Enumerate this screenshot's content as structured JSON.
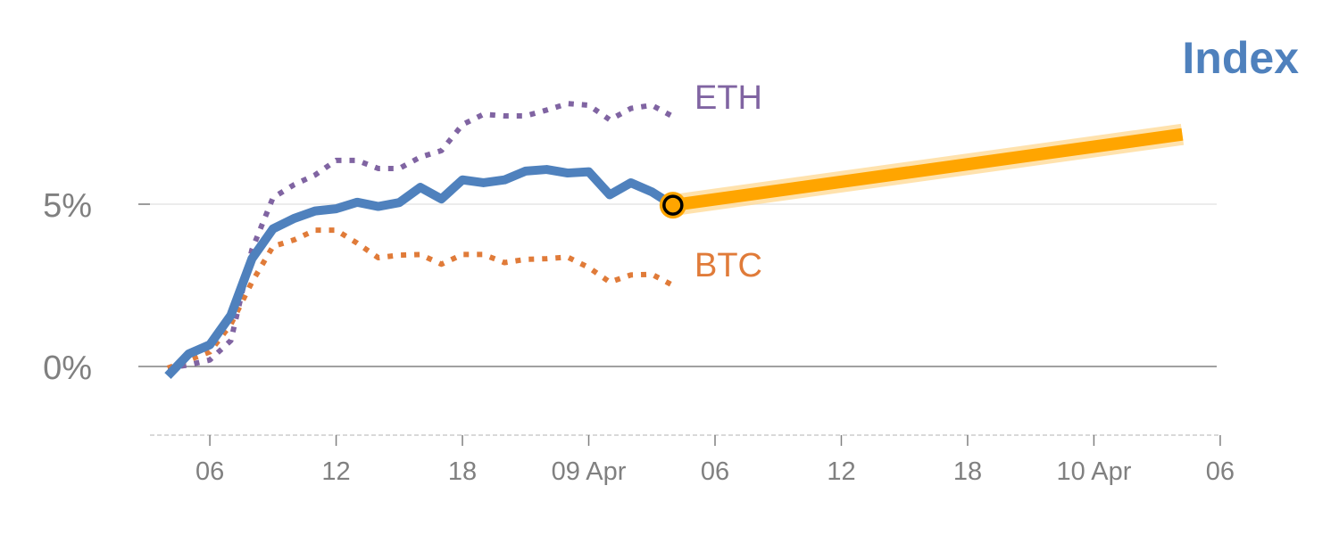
{
  "chart_data": {
    "type": "line",
    "title": "Index",
    "xlabel": "",
    "ylabel": "",
    "x_unit": "hours since 08 Apr 00:00",
    "xlim": [
      3.15,
      54
    ],
    "ylim": [
      -2.1,
      11.3
    ],
    "x_ticks": [
      {
        "hour": 6,
        "label": "06"
      },
      {
        "hour": 12,
        "label": "12"
      },
      {
        "hour": 18,
        "label": "18"
      },
      {
        "hour": 24,
        "label": "09 Apr"
      },
      {
        "hour": 30,
        "label": "06"
      },
      {
        "hour": 36,
        "label": "12"
      },
      {
        "hour": 42,
        "label": "18"
      },
      {
        "hour": 48,
        "label": "10 Apr"
      },
      {
        "hour": 54,
        "label": "06"
      }
    ],
    "y_ticks": [
      {
        "value": 0,
        "label": "0%"
      },
      {
        "value": 5,
        "label": "5%"
      }
    ],
    "x": [
      4,
      5,
      6,
      7,
      8,
      9,
      10,
      11,
      12,
      13,
      14,
      15,
      16,
      17,
      18,
      19,
      20,
      21,
      22,
      23,
      24,
      25,
      26,
      27,
      28
    ],
    "series": [
      {
        "name": "Index",
        "label": "",
        "color": "#4f81bd",
        "style": "solid",
        "values": [
          -0.29,
          0.39,
          0.67,
          1.58,
          3.32,
          4.24,
          4.56,
          4.79,
          4.86,
          5.06,
          4.93,
          5.05,
          5.52,
          5.16,
          5.75,
          5.66,
          5.75,
          6.02,
          6.07,
          5.96,
          6.0,
          5.29,
          5.66,
          5.38,
          4.97
        ]
      },
      {
        "name": "ETH",
        "label": "ETH",
        "color": "#8064a2",
        "style": "dotted",
        "values": [
          -0.05,
          0.05,
          0.2,
          0.8,
          3.6,
          5.2,
          5.6,
          5.9,
          6.35,
          6.35,
          6.1,
          6.1,
          6.45,
          6.65,
          7.45,
          7.77,
          7.72,
          7.72,
          7.9,
          8.1,
          8.05,
          7.6,
          7.95,
          8.05,
          7.7
        ]
      },
      {
        "name": "BTC",
        "label": "BTC",
        "color": "#e07b39",
        "style": "dotted",
        "values": [
          -0.05,
          0.2,
          0.45,
          1.3,
          2.6,
          3.7,
          3.9,
          4.2,
          4.2,
          3.8,
          3.35,
          3.43,
          3.45,
          3.15,
          3.45,
          3.45,
          3.2,
          3.3,
          3.32,
          3.37,
          3.05,
          2.6,
          2.82,
          2.84,
          2.5
        ]
      }
    ],
    "projection": {
      "name": "Index projection",
      "color": "#ffa500",
      "x": [
        28,
        52.2
      ],
      "values": [
        4.97,
        7.15
      ]
    },
    "current_marker": {
      "x": 28,
      "value": 4.97
    },
    "grid": true,
    "legend": "inline labels at line ends"
  }
}
